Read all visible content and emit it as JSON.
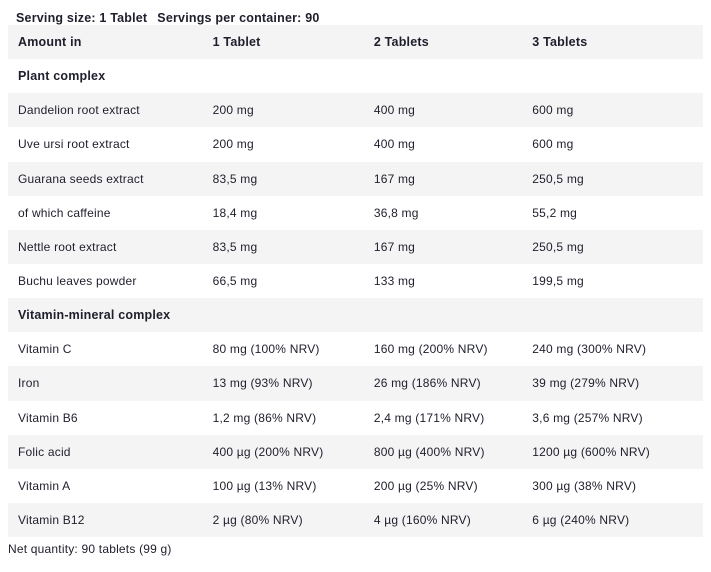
{
  "top": {
    "serving_size": "Serving size: 1 Tablet",
    "servings_per_container": "Servings per container: 90"
  },
  "table": {
    "headers": [
      "Amount in",
      "1 Tablet",
      "2 Tablets",
      "3 Tablets"
    ],
    "sections": [
      {
        "title": "Plant complex",
        "rows": [
          {
            "label": "Dandelion root extract",
            "values": [
              "200 mg",
              "400 mg",
              "600 mg"
            ]
          },
          {
            "label": "Uve ursi root extract",
            "values": [
              "200 mg",
              "400 mg",
              "600 mg"
            ]
          },
          {
            "label": "Guarana seeds extract",
            "values": [
              "83,5 mg",
              "167 mg",
              "250,5 mg"
            ]
          },
          {
            "label": "of which caffeine",
            "values": [
              "18,4 mg",
              "36,8 mg",
              "55,2 mg"
            ]
          },
          {
            "label": "Nettle root extract",
            "values": [
              "83,5 mg",
              "167 mg",
              "250,5 mg"
            ]
          },
          {
            "label": "Buchu leaves powder",
            "values": [
              "66,5 mg",
              "133 mg",
              "199,5 mg"
            ]
          }
        ]
      },
      {
        "title": "Vitamin-mineral complex",
        "rows": [
          {
            "label": "Vitamin C",
            "values": [
              "80 mg (100% NRV)",
              "160 mg (200% NRV)",
              "240 mg (300% NRV)"
            ]
          },
          {
            "label": "Iron",
            "values": [
              "13 mg (93% NRV)",
              "26 mg (186% NRV)",
              "39 mg (279% NRV)"
            ]
          },
          {
            "label": "Vitamin B6",
            "values": [
              "1,2 mg (86% NRV)",
              "2,4 mg (171% NRV)",
              "3,6 mg (257% NRV)"
            ]
          },
          {
            "label": "Folic acid",
            "values": [
              "400 µg (200% NRV)",
              "800 µg (400% NRV)",
              "1200 µg (600% NRV)"
            ]
          },
          {
            "label": "Vitamin A",
            "values": [
              "100 µg (13% NRV)",
              "200 µg (25% NRV)",
              "300 µg (38% NRV)"
            ]
          },
          {
            "label": "Vitamin B12",
            "values": [
              "2 µg (80% NRV)",
              "4 µg (160% NRV)",
              "6 µg (240% NRV)"
            ]
          }
        ]
      }
    ]
  },
  "footer": {
    "net_quantity": "Net quantity: 90 tablets (99 g)"
  },
  "colors": {
    "row_alt_background": "#f4f4f4",
    "text": "#1e1e2c",
    "page_background": "#ffffff"
  }
}
